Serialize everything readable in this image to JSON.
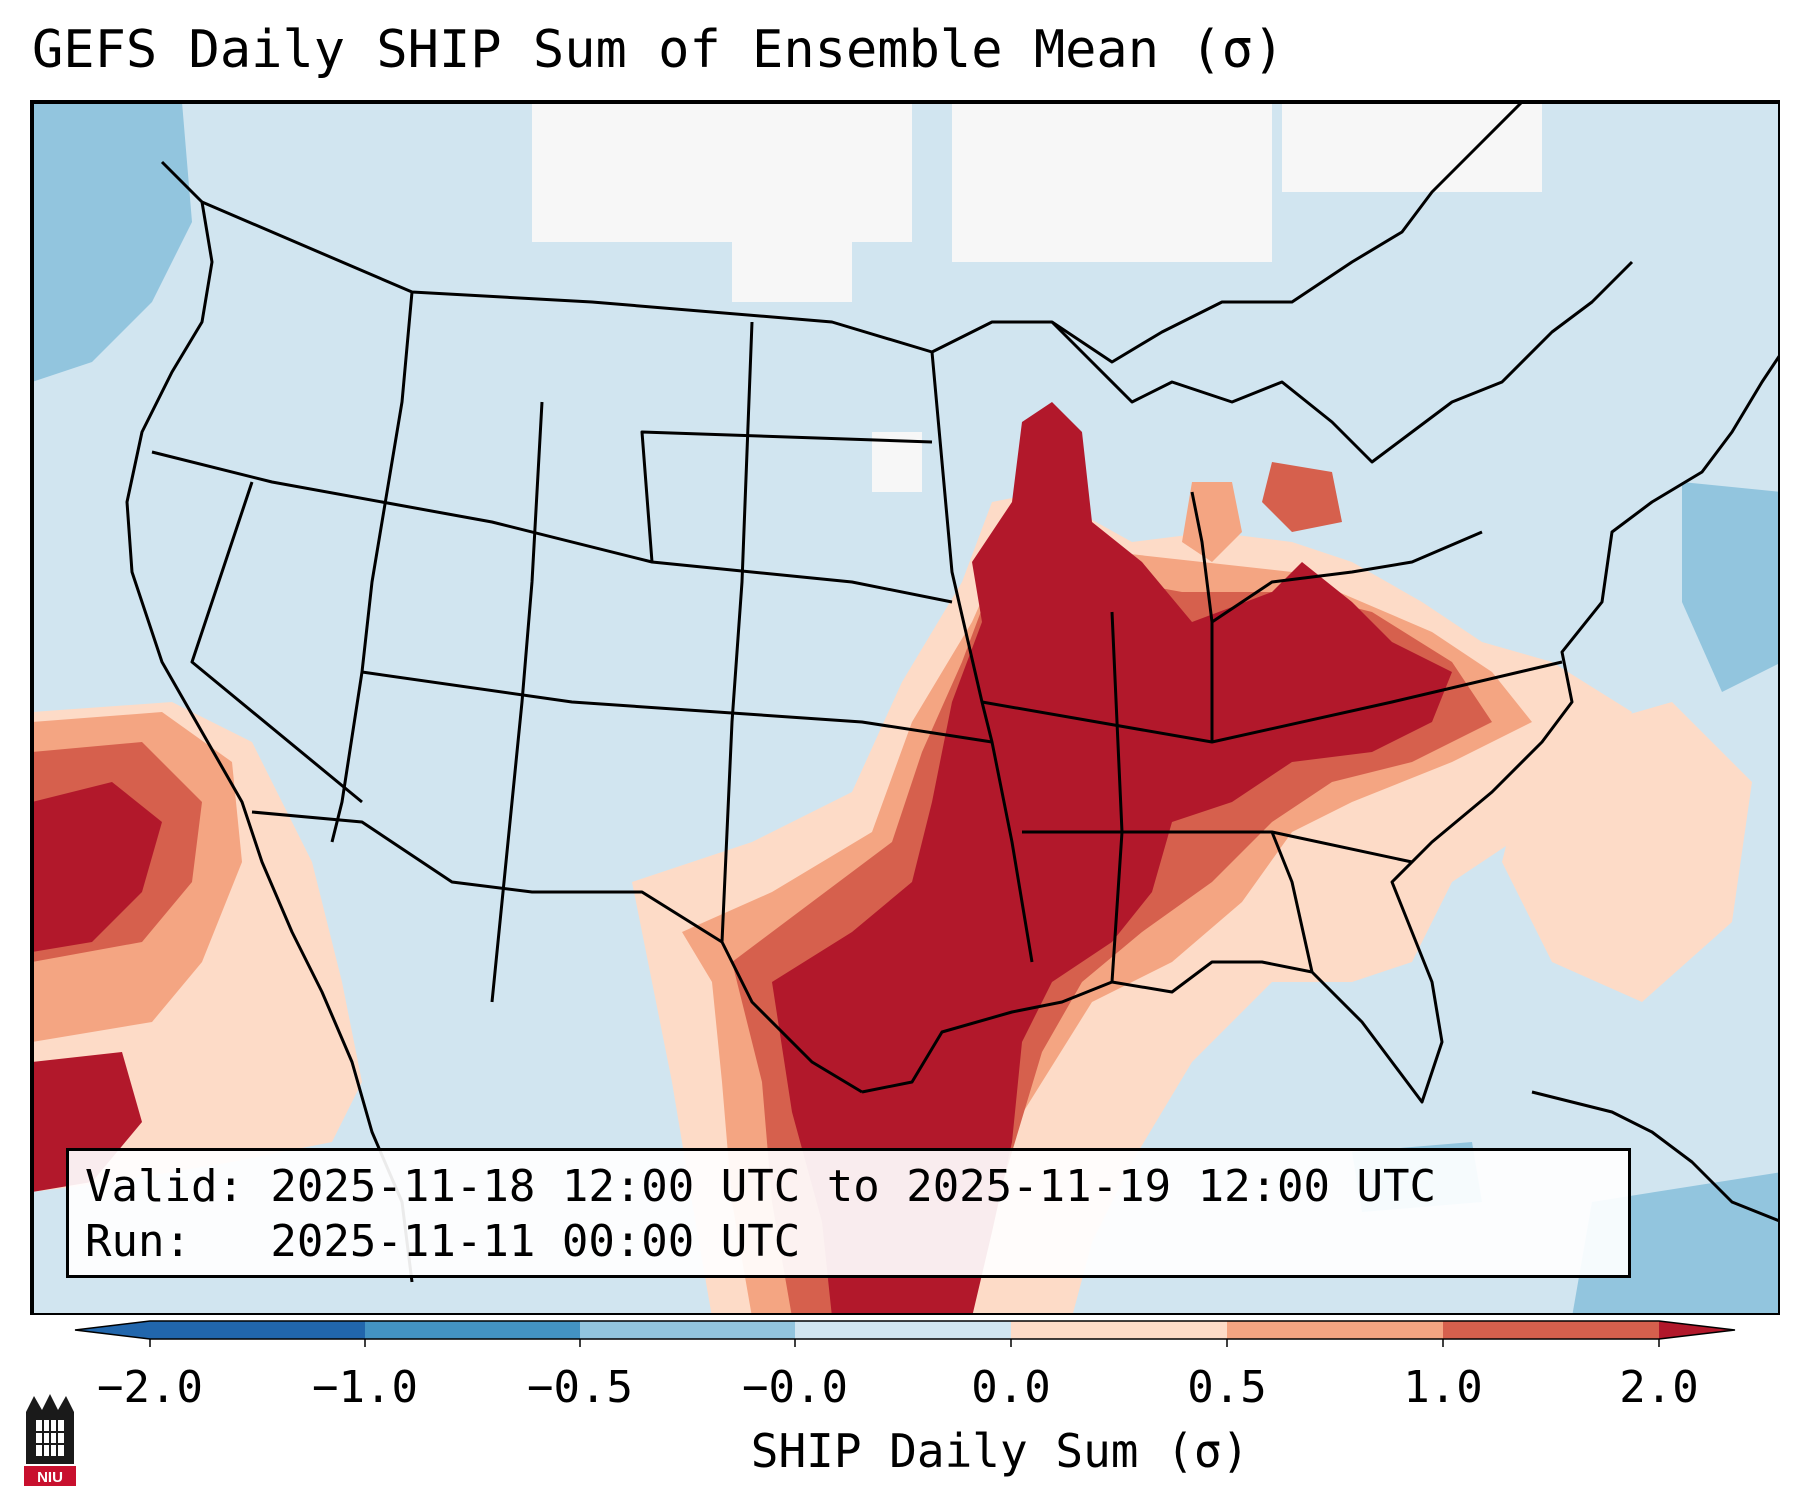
{
  "title": "GEFS Daily SHIP Sum of Ensemble Mean (σ)",
  "info": {
    "valid_line": "Valid: 2025-11-18 12:00 UTC to 2025-11-19 12:00 UTC",
    "run_line": "Run:   2025-11-11 00:00 UTC"
  },
  "colorbar": {
    "label": "SHIP Daily Sum (σ)",
    "ticks": [
      "−2.0",
      "−1.0",
      "−0.5",
      "−0.0",
      "0.0",
      "0.5",
      "1.0",
      "2.0"
    ],
    "colors": [
      "#2166ac",
      "#4393c3",
      "#92c5de",
      "#d1e5f0",
      "#fddbc7",
      "#f4a582",
      "#d6604d",
      "#b2182b"
    ]
  },
  "logo_text": "NIU",
  "map": {
    "region": "Contiguous United States",
    "areas": [
      {
        "name": "plains-south-core",
        "level": 2.0
      },
      {
        "name": "mississippi-valley",
        "level": 2.0
      },
      {
        "name": "ohio-valley",
        "level": 2.0
      },
      {
        "name": "gulf-coast",
        "level": 1.0
      },
      {
        "name": "southeast",
        "level": 0.5
      },
      {
        "name": "atlantic-offshore",
        "level": 0.0
      },
      {
        "name": "pacific-offshore",
        "level": 2.0
      },
      {
        "name": "north-pacific",
        "level": -1.0
      },
      {
        "name": "northern-plains",
        "level": -0.5
      }
    ]
  }
}
